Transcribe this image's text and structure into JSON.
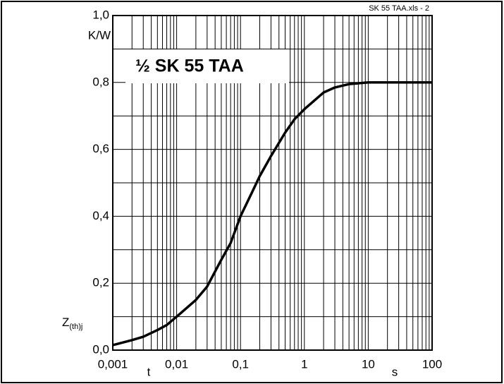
{
  "chart_data": {
    "type": "line",
    "title": "½ SK 55 TAA",
    "file_label": "SK 55 TAA.xls - 2",
    "y_unit": "K/W",
    "x_var": "t",
    "x_unit": "s",
    "ylabel": {
      "main": "Z",
      "sub": "(th)j"
    },
    "xscale": "log",
    "grid": true,
    "xlim": [
      0.001,
      100
    ],
    "ylim": [
      0,
      1
    ],
    "xticks": [
      {
        "value": 0.001,
        "label": "0,001"
      },
      {
        "value": 0.01,
        "label": "0,01"
      },
      {
        "value": 0.1,
        "label": "0,1"
      },
      1,
      10,
      100
    ],
    "xminorticks": [
      0.002,
      0.003,
      0.004,
      0.005,
      0.006,
      0.007,
      0.008,
      0.009,
      0.02,
      0.03,
      0.04,
      0.05,
      0.06,
      0.07,
      0.08,
      0.09,
      0.2,
      0.3,
      0.4,
      0.5,
      0.6,
      0.7,
      0.8,
      0.9,
      2,
      3,
      4,
      5,
      6,
      7,
      8,
      9,
      20,
      30,
      40,
      50,
      60,
      70,
      80,
      90
    ],
    "yticks": [
      {
        "value": 0,
        "label": "0,0"
      },
      {
        "value": 0.2,
        "label": "0,2"
      },
      {
        "value": 0.4,
        "label": "0,4"
      },
      {
        "value": 0.6,
        "label": "0,6"
      },
      {
        "value": 0.8,
        "label": "0,8"
      },
      {
        "value": 1,
        "label": "1,0"
      }
    ],
    "yminorticks": [
      0.1,
      0.3,
      0.5,
      0.7,
      0.9
    ],
    "series": [
      {
        "name": "Z(th)j",
        "color": "#000000",
        "x": [
          0.001,
          0.002,
          0.003,
          0.005,
          0.007,
          0.01,
          0.02,
          0.03,
          0.05,
          0.07,
          0.1,
          0.15,
          0.2,
          0.3,
          0.5,
          0.7,
          1,
          2,
          3,
          5,
          10,
          100
        ],
        "values": [
          0.015,
          0.03,
          0.04,
          0.06,
          0.075,
          0.1,
          0.15,
          0.19,
          0.27,
          0.32,
          0.4,
          0.47,
          0.52,
          0.58,
          0.65,
          0.69,
          0.72,
          0.77,
          0.785,
          0.795,
          0.8,
          0.8
        ]
      }
    ]
  }
}
